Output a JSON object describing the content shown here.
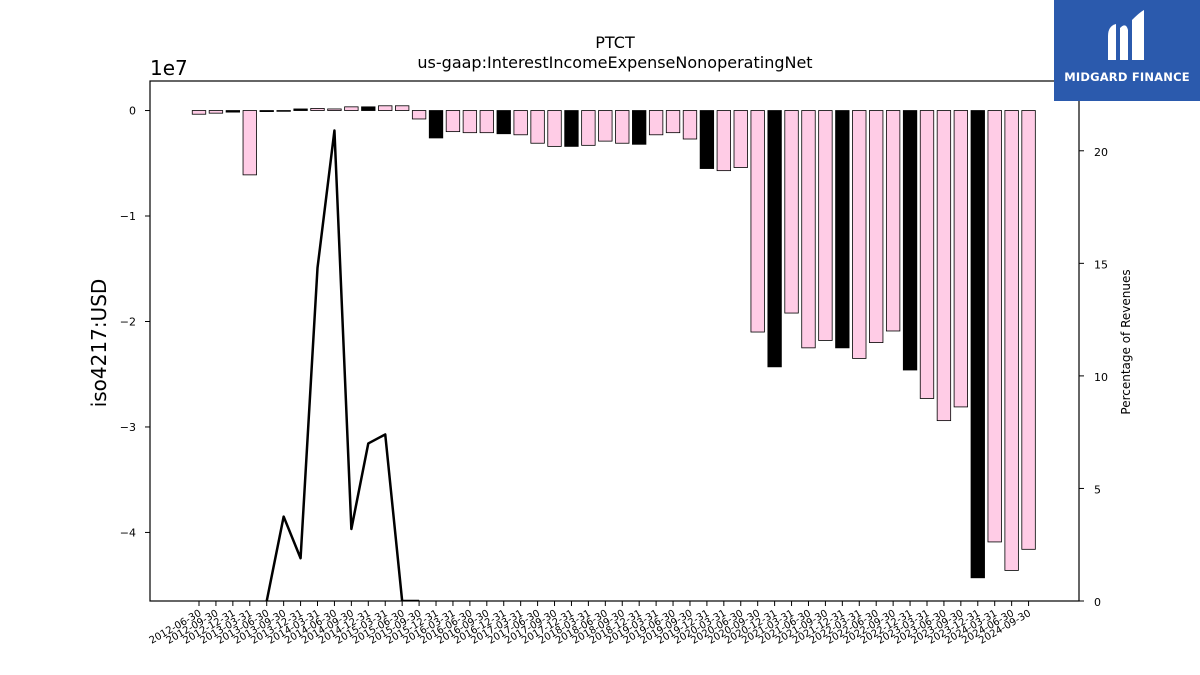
{
  "brand": {
    "name": "MIDGARD FINANCE",
    "bg_color": "#2b5aad",
    "icon": "midgard-finance-logo-mark"
  },
  "chart_data": {
    "type": "bar",
    "title": "PTCT",
    "subtitle": "us-gaap:InterestIncomeExpenseNonoperatingNet",
    "ylabel": "iso4217:USD",
    "y_offset_label": "1e7",
    "y2label": "Percentage of Revenues",
    "ylim": [
      -46500000,
      2800000
    ],
    "y2lim": [
      0,
      23.1
    ],
    "yticks": [
      0,
      -10000000,
      -20000000,
      -30000000,
      -40000000
    ],
    "ytick_labels": [
      "0",
      "−1",
      "−2",
      "−3",
      "−4"
    ],
    "y2ticks": [
      0,
      5,
      10,
      15,
      20
    ],
    "y2tick_labels": [
      "0",
      "5",
      "10",
      "15",
      "20"
    ],
    "grid": false,
    "colors": {
      "quarterly": "#ffcce6",
      "annual": "#000000",
      "line": "#000000",
      "edge": "#000000"
    },
    "categories": [
      "2012-06-30",
      "2012-09-30",
      "2012-12-31",
      "2013-03-31",
      "2013-06-30",
      "2013-09-30",
      "2013-12-31",
      "2014-03-31",
      "2014-06-30",
      "2014-09-30",
      "2014-12-31",
      "2015-03-31",
      "2015-06-30",
      "2015-09-30",
      "2015-12-31",
      "2016-03-31",
      "2016-06-30",
      "2016-09-30",
      "2016-12-31",
      "2017-03-31",
      "2017-06-30",
      "2017-09-30",
      "2017-12-31",
      "2018-03-31",
      "2018-06-30",
      "2018-09-30",
      "2018-12-31",
      "2019-03-31",
      "2019-06-30",
      "2019-09-30",
      "2019-12-31",
      "2020-03-31",
      "2020-06-30",
      "2020-09-30",
      "2020-12-31",
      "2021-03-31",
      "2021-06-30",
      "2021-09-30",
      "2021-12-31",
      "2022-03-31",
      "2022-06-30",
      "2022-09-30",
      "2022-12-31",
      "2023-03-31",
      "2023-06-30",
      "2023-09-30",
      "2023-12-31",
      "2024-03-31",
      "2024-06-30",
      "2024-09-30"
    ],
    "series": [
      {
        "values": [
          -350000,
          -250000,
          -150000,
          -6100000,
          -100000,
          -50000,
          150000,
          200000,
          150000,
          350000,
          350000,
          450000,
          450000,
          -800000,
          -2600000,
          -2000000,
          -2100000,
          -2100000,
          -2200000,
          -2300000,
          -3100000,
          -3400000,
          -3400000,
          -3300000,
          -2900000,
          -3100000,
          -3200000,
          -2300000,
          -2100000,
          -2700000,
          -5500000,
          -5700000,
          -5400000,
          -21000000,
          -24300000,
          -19200000,
          -22500000,
          -21800000,
          -22500000,
          -23500000,
          -22000000,
          -20900000,
          -24600000,
          -27300000,
          -29400000,
          -28100000,
          -44300000,
          -40900000,
          -43600000,
          -41600000
        ],
        "annual": [
          false,
          false,
          true,
          false,
          true,
          false,
          true,
          false,
          false,
          false,
          true,
          false,
          false,
          false,
          true,
          false,
          false,
          false,
          true,
          false,
          false,
          false,
          true,
          false,
          false,
          false,
          true,
          false,
          false,
          false,
          true,
          false,
          false,
          false,
          true,
          false,
          false,
          false,
          true,
          false,
          false,
          false,
          true,
          false,
          false,
          false,
          true,
          false,
          false,
          false
        ]
      },
      {
        "type": "line",
        "axis": "y2",
        "x": [
          "2013-06-30",
          "2013-09-30",
          "2013-12-31",
          "2014-03-31",
          "2014-06-30",
          "2014-09-30",
          "2014-12-31",
          "2015-03-31",
          "2015-06-30",
          "2015-09-30"
        ],
        "values": [
          0,
          3.75,
          1.9,
          14.8,
          20.9,
          3.2,
          7.0,
          7.4,
          0,
          0
        ]
      }
    ]
  }
}
